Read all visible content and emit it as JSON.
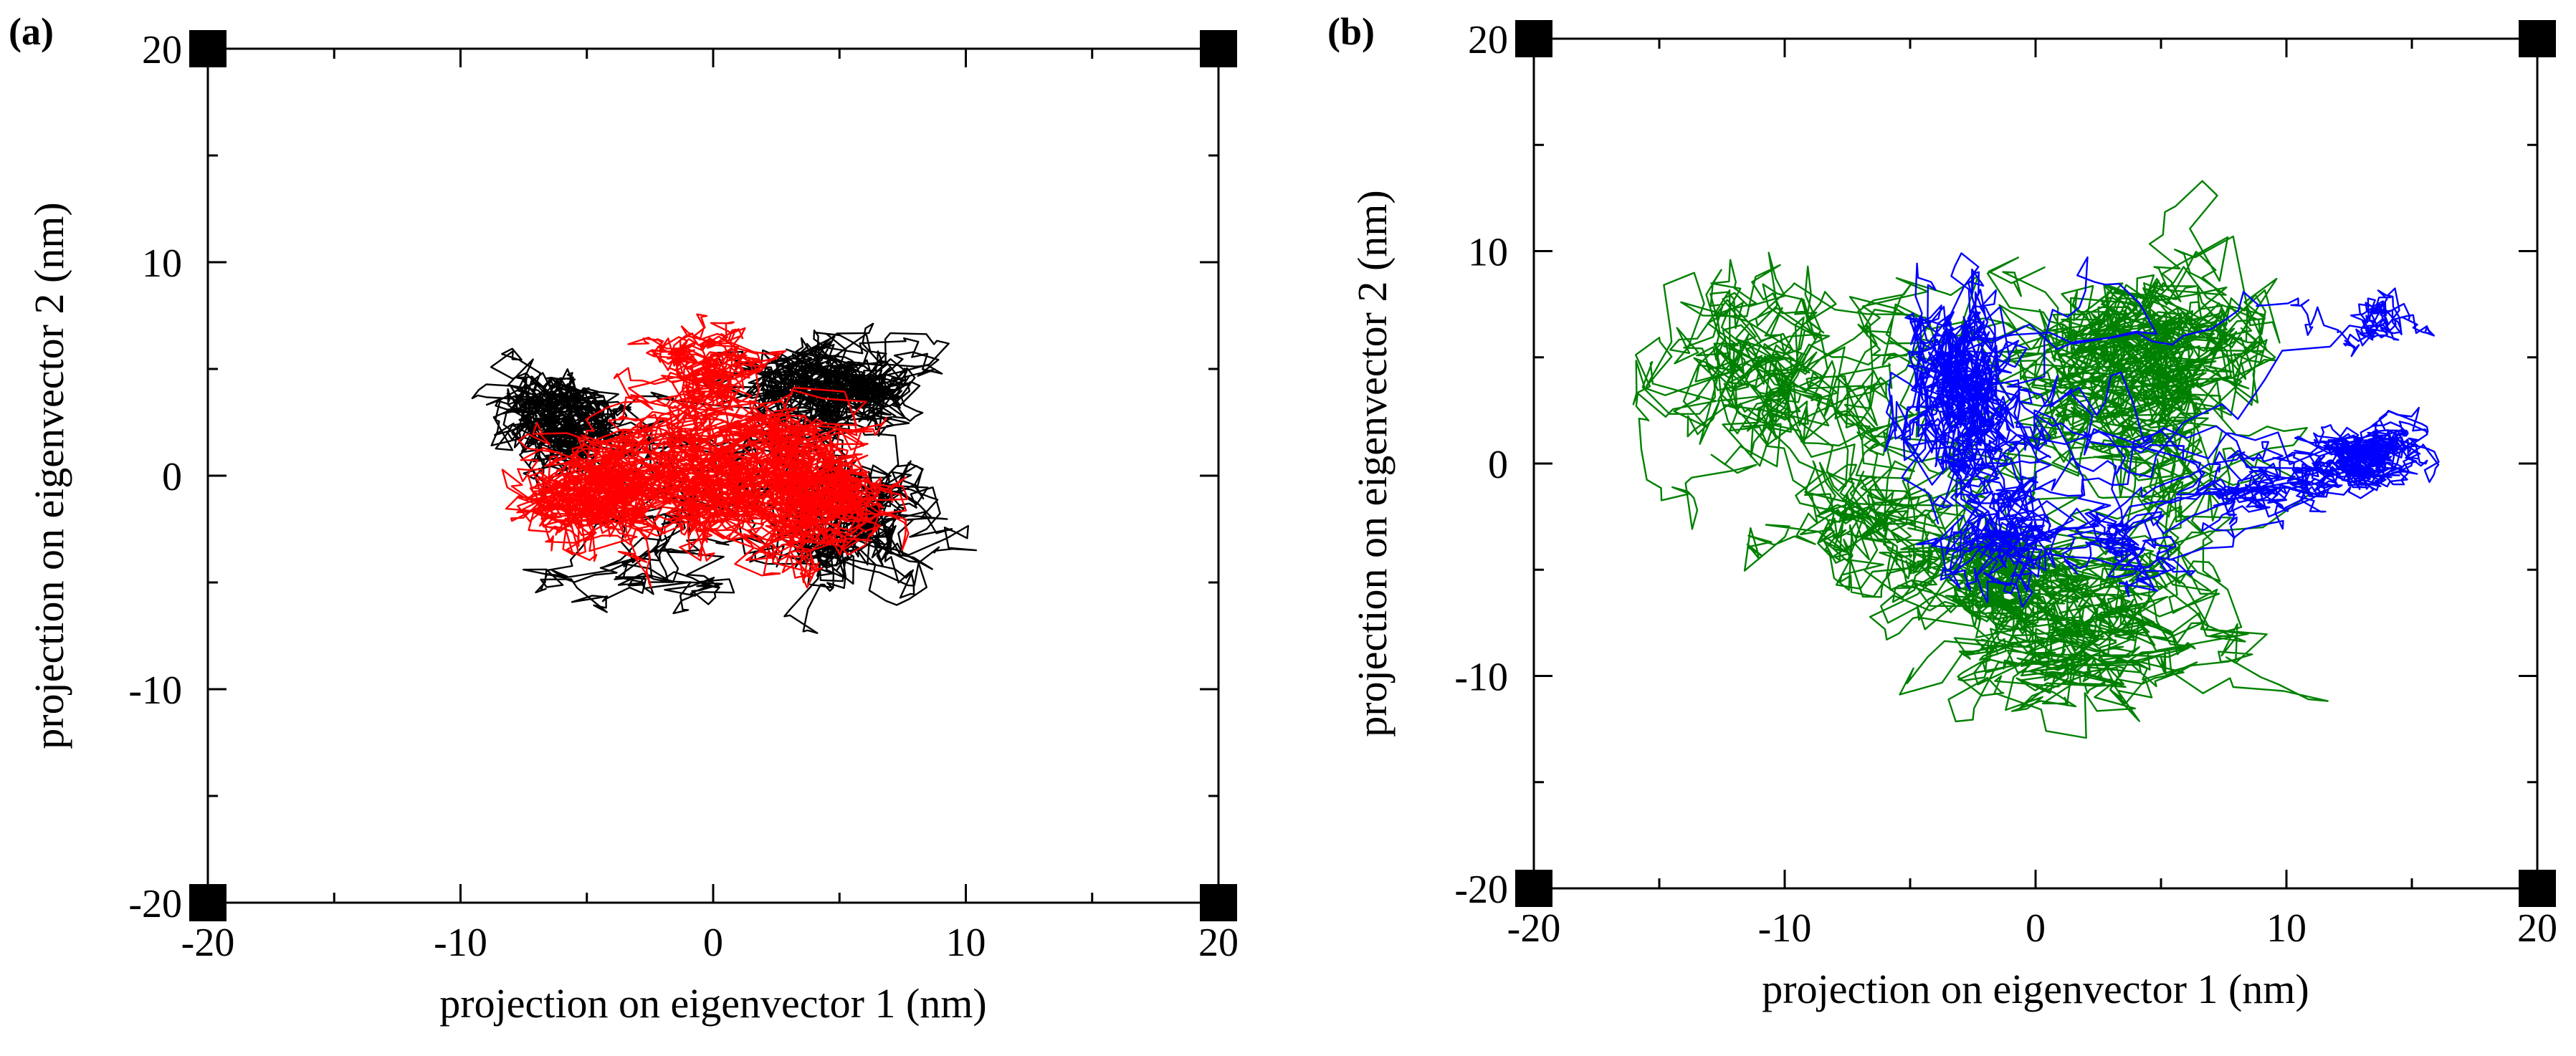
{
  "chart_data": [
    {
      "type": "line",
      "panel": "(a)",
      "title": "",
      "xlabel": "projection on eigenvector 1 (nm)",
      "ylabel": "projection on eigenvector 2 (nm)",
      "xlim": [
        -20,
        20
      ],
      "ylim": [
        -20,
        20
      ],
      "xticks": [
        -20,
        -10,
        0,
        10,
        20
      ],
      "yticks": [
        -20,
        -10,
        0,
        10,
        20
      ],
      "xtick_labels": [
        "-20",
        "-10",
        "0",
        "10",
        "20"
      ],
      "ytick_labels": [
        "-20",
        "-10",
        "0",
        "10",
        "20"
      ],
      "grid": false,
      "corner_marker_color": "#000000",
      "series": [
        {
          "name": "black trajectory",
          "color": "#000000",
          "seed": 11,
          "clusters": [
            {
              "cx": -6.5,
              "cy": 3.0,
              "sx": 1.4,
              "sy": 1.4,
              "w": 1.0
            },
            {
              "cx": 4.5,
              "cy": 4.0,
              "sx": 1.8,
              "sy": 1.4,
              "w": 1.1
            },
            {
              "cx": 5.5,
              "cy": -2.5,
              "sx": 1.7,
              "sy": 2.0,
              "w": 1.0
            },
            {
              "cx": -1.0,
              "cy": -4.5,
              "sx": 2.0,
              "sy": 1.3,
              "w": 0.7
            },
            {
              "cx": -3.5,
              "cy": -7.0,
              "sx": 1.0,
              "sy": 1.0,
              "w": 0.15
            }
          ],
          "points": 2600,
          "step": 0.55
        },
        {
          "name": "red trajectory",
          "color": "#ff0000",
          "seed": 29,
          "clusters": [
            {
              "cx": -5.0,
              "cy": -1.0,
              "sx": 1.8,
              "sy": 1.5,
              "w": 1.0
            },
            {
              "cx": 0.5,
              "cy": 0.5,
              "sx": 2.4,
              "sy": 2.0,
              "w": 1.3
            },
            {
              "cx": 3.5,
              "cy": -1.0,
              "sx": 1.8,
              "sy": 1.6,
              "w": 1.0
            },
            {
              "cx": 0.0,
              "cy": 5.5,
              "sx": 1.5,
              "sy": 1.0,
              "w": 0.35
            }
          ],
          "points": 3600,
          "step": 0.5
        }
      ]
    },
    {
      "type": "line",
      "panel": "(b)",
      "title": "",
      "xlabel": "projection on eigenvector 1 (nm)",
      "ylabel": "projection on eigenvector 2 (nm)",
      "xlim": [
        -20,
        20
      ],
      "ylim": [
        -20,
        20
      ],
      "xticks": [
        -20,
        -10,
        0,
        10,
        20
      ],
      "yticks": [
        -20,
        -10,
        0,
        10,
        20
      ],
      "xtick_labels": [
        "-20",
        "-10",
        "0",
        "10",
        "20"
      ],
      "ytick_labels": [
        "-20",
        "-10",
        "0",
        "10",
        "20"
      ],
      "grid": false,
      "corner_marker_color": "#000000",
      "series": [
        {
          "name": "green trajectory",
          "color": "#008000",
          "seed": 47,
          "clusters": [
            {
              "cx": -10.5,
              "cy": 4.0,
              "sx": 2.0,
              "sy": 2.2,
              "w": 1.0
            },
            {
              "cx": -7.5,
              "cy": -3.0,
              "sx": 1.8,
              "sy": 2.0,
              "w": 0.7
            },
            {
              "cx": 4.5,
              "cy": 4.5,
              "sx": 2.3,
              "sy": 2.4,
              "w": 1.2
            },
            {
              "cx": 2.0,
              "cy": -8.5,
              "sx": 2.6,
              "sy": 1.8,
              "w": 0.9
            },
            {
              "cx": -1.0,
              "cy": -6.0,
              "sx": 1.6,
              "sy": 1.4,
              "w": 0.4
            }
          ],
          "points": 3200,
          "step": 0.65
        },
        {
          "name": "blue trajectory",
          "color": "#0000ff",
          "seed": 83,
          "clusters": [
            {
              "cx": -3.0,
              "cy": 3.5,
              "sx": 1.2,
              "sy": 2.6,
              "w": 1.2
            },
            {
              "cx": -2.0,
              "cy": -2.5,
              "sx": 1.5,
              "sy": 2.0,
              "w": 1.0
            },
            {
              "cx": 3.0,
              "cy": -4.0,
              "sx": 1.8,
              "sy": 1.2,
              "w": 0.8
            },
            {
              "cx": 9.0,
              "cy": -1.0,
              "sx": 1.5,
              "sy": 1.0,
              "w": 0.5
            },
            {
              "cx": 13.0,
              "cy": 0.5,
              "sx": 1.3,
              "sy": 1.0,
              "w": 0.5
            },
            {
              "cx": 13.5,
              "cy": 7.5,
              "sx": 0.9,
              "sy": 1.2,
              "w": 0.35
            }
          ],
          "points": 2800,
          "step": 0.5
        }
      ]
    }
  ]
}
